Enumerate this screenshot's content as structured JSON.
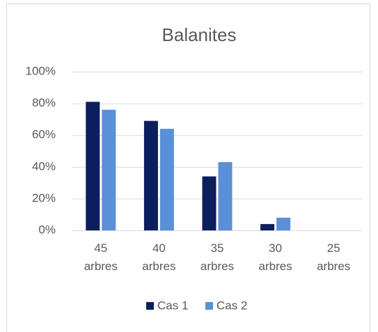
{
  "chart_data": {
    "type": "bar",
    "title": "Balanites",
    "categories": [
      "45 arbres",
      "40 arbres",
      "35 arbres",
      "30 arbres",
      "25 arbres"
    ],
    "series": [
      {
        "name": "Cas 1",
        "color": "#0b1f5c",
        "values": [
          81,
          69,
          34,
          4,
          0
        ]
      },
      {
        "name": "Cas 2",
        "color": "#5b8fd6",
        "values": [
          76,
          64,
          43,
          8,
          0
        ]
      }
    ],
    "ylim": [
      0,
      100
    ],
    "yticks": [
      {
        "value": 0,
        "label": "0%"
      },
      {
        "value": 20,
        "label": "20%"
      },
      {
        "value": 40,
        "label": "40%"
      },
      {
        "value": 60,
        "label": "60%"
      },
      {
        "value": 80,
        "label": "80%"
      },
      {
        "value": 100,
        "label": "100%"
      }
    ],
    "grid": true,
    "legend": "bottom"
  }
}
